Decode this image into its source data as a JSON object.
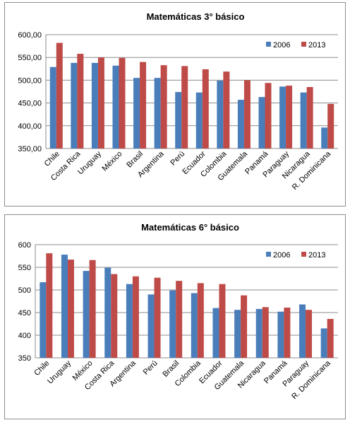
{
  "charts": [
    {
      "type": "bar",
      "title": "Matemáticas 3° básico",
      "categories": [
        "Chile",
        "Costa Rica",
        "Uruguay",
        "México",
        "Brasil",
        "Argentina",
        "Perú",
        "Ecuador",
        "Colombia",
        "Guatemala",
        "Panamá",
        "Paraguay",
        "Nicaragua",
        "R. Dominicana"
      ],
      "series": [
        {
          "name": "2006",
          "color": "#4a7ebb",
          "values": [
            529,
            538,
            538,
            532,
            505,
            505,
            474,
            473,
            499,
            457,
            463,
            486,
            473,
            396
          ]
        },
        {
          "name": "2013",
          "color": "#be4b48",
          "values": [
            582,
            558,
            550,
            549,
            540,
            533,
            531,
            524,
            519,
            500,
            494,
            488,
            485,
            448
          ]
        }
      ],
      "ylim": [
        350,
        600
      ],
      "ticks": [
        "350,00",
        "400,00",
        "450,00",
        "500,00",
        "550,00",
        "600,00"
      ],
      "legend": "top-right",
      "grid": true
    },
    {
      "type": "bar",
      "title": "Matemáticas 6° básico",
      "categories": [
        "Chile",
        "Uruguay",
        "México",
        "Costa Rica",
        "Argentina",
        "Perú",
        "Brasil",
        "Colombia",
        "Ecuador",
        "Guatemala",
        "Nicaragua",
        "Panamá",
        "Paraguay",
        "R. Dominicana"
      ],
      "series": [
        {
          "name": "2006",
          "color": "#4a7ebb",
          "values": [
            517,
            578,
            542,
            549,
            513,
            490,
            499,
            493,
            460,
            456,
            458,
            452,
            468,
            415
          ]
        },
        {
          "name": "2013",
          "color": "#be4b48",
          "values": [
            581,
            567,
            566,
            535,
            530,
            527,
            520,
            515,
            513,
            488,
            462,
            461,
            456,
            436
          ]
        }
      ],
      "ylim": [
        350,
        600
      ],
      "ticks": [
        "350",
        "400",
        "450",
        "500",
        "550",
        "600"
      ],
      "legend": "top-right",
      "grid": true
    }
  ]
}
